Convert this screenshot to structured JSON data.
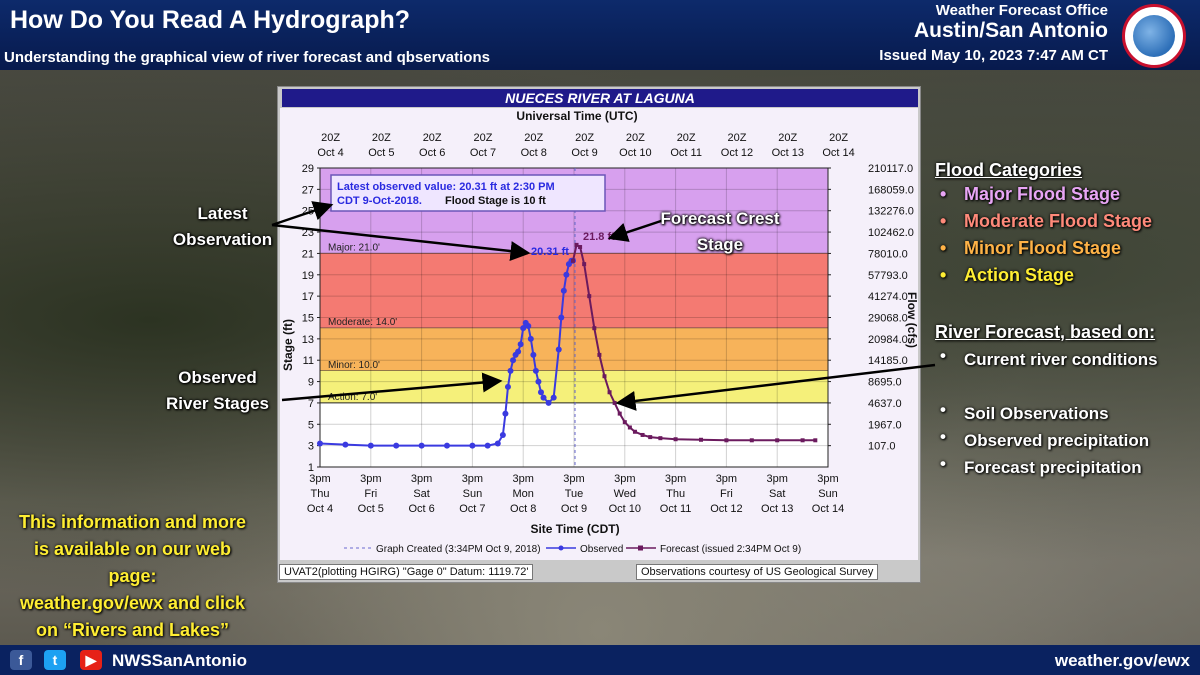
{
  "header": {
    "title": "How Do You Read A Hydrograph?",
    "subtitle": "Understanding the graphical view of river forecast and qbservations",
    "office": "Weather Forecast Office",
    "city": "Austin/San Antonio",
    "issued": "Issued May 10, 2023 7:47 AM CT"
  },
  "footer": {
    "handle": "NWSSanAntonio",
    "website": "weather.gov/ewx",
    "icons": [
      "facebook-icon",
      "twitter-icon",
      "youtube-icon"
    ]
  },
  "annotations": {
    "latest": "Latest Observation",
    "crest": "Forecast Crest Stage",
    "observed": "Observed River Stages"
  },
  "right": {
    "flood_head": "Flood Categories",
    "categories": [
      {
        "label": "Major Flood Stage",
        "color": "#e8a5f5"
      },
      {
        "label": "Moderate Flood Stage",
        "color": "#ff8a7a"
      },
      {
        "label": "Minor Flood Stage",
        "color": "#ffb347"
      },
      {
        "label": "Action Stage",
        "color": "#ffee33"
      }
    ],
    "forecast_head": "River Forecast, based on:",
    "bullets": [
      "Current river conditions",
      "Soil Observations",
      "Observed precipitation",
      "Forecast precipitation"
    ]
  },
  "info": {
    "line1": "This information and more",
    "line2": "is available on our web",
    "line3": "page:",
    "line4": "weather.gov/ewx and click",
    "line5": "on “Rivers and Lakes”"
  },
  "chart_footer": {
    "left": "UVAT2(plotting HGIRG) \"Gage 0\" Datum: 1119.72'",
    "right": "Observations courtesy of US Geological Survey"
  },
  "chart_data": {
    "type": "line",
    "title": "NUECES RIVER AT LAGUNA",
    "top_axis_title": "Universal Time (UTC)",
    "xlabel": "Site Time (CDT)",
    "ylabel": "Stage (ft)",
    "y2label": "Flow (cfs)",
    "ylim": [
      1,
      29
    ],
    "xlim": [
      "Oct 4 3pm",
      "Oct 14 3pm"
    ],
    "x_units": "days since Oct 4 3pm CDT",
    "y_ticks": [
      1,
      3,
      5,
      7,
      9,
      11,
      13,
      15,
      17,
      19,
      21,
      23,
      25,
      27,
      29
    ],
    "y2_ticks": [
      {
        "stage": 3,
        "label": "107.0"
      },
      {
        "stage": 5,
        "label": "1967.0"
      },
      {
        "stage": 7,
        "label": "4637.0"
      },
      {
        "stage": 9,
        "label": "8695.0"
      },
      {
        "stage": 11,
        "label": "14185.0"
      },
      {
        "stage": 13,
        "label": "20984.0"
      },
      {
        "stage": 15,
        "label": "29068.0"
      },
      {
        "stage": 17,
        "label": "41274.0"
      },
      {
        "stage": 19,
        "label": "57793.0"
      },
      {
        "stage": 21,
        "label": "78010.0"
      },
      {
        "stage": 23,
        "label": "102462.0"
      },
      {
        "stage": 25,
        "label": "132276.0"
      },
      {
        "stage": 27,
        "label": "168059.0"
      },
      {
        "stage": 29,
        "label": "210117.0"
      }
    ],
    "bottom_ticks": [
      {
        "l1": "3pm",
        "l2": "Thu",
        "l3": "Oct 4"
      },
      {
        "l1": "3pm",
        "l2": "Fri",
        "l3": "Oct 5"
      },
      {
        "l1": "3pm",
        "l2": "Sat",
        "l3": "Oct 6"
      },
      {
        "l1": "3pm",
        "l2": "Sun",
        "l3": "Oct 7"
      },
      {
        "l1": "3pm",
        "l2": "Mon",
        "l3": "Oct 8"
      },
      {
        "l1": "3pm",
        "l2": "Tue",
        "l3": "Oct 9"
      },
      {
        "l1": "3pm",
        "l2": "Wed",
        "l3": "Oct 10"
      },
      {
        "l1": "3pm",
        "l2": "Thu",
        "l3": "Oct 11"
      },
      {
        "l1": "3pm",
        "l2": "Fri",
        "l3": "Oct 12"
      },
      {
        "l1": "3pm",
        "l2": "Sat",
        "l3": "Oct 13"
      },
      {
        "l1": "3pm",
        "l2": "Sun",
        "l3": "Oct 14"
      }
    ],
    "top_ticks": [
      {
        "l1": "20Z",
        "l2": "Oct 4"
      },
      {
        "l1": "20Z",
        "l2": "Oct 5"
      },
      {
        "l1": "20Z",
        "l2": "Oct 6"
      },
      {
        "l1": "20Z",
        "l2": "Oct 7"
      },
      {
        "l1": "20Z",
        "l2": "Oct 8"
      },
      {
        "l1": "20Z",
        "l2": "Oct 9"
      },
      {
        "l1": "20Z",
        "l2": "Oct 10"
      },
      {
        "l1": "20Z",
        "l2": "Oct 11"
      },
      {
        "l1": "20Z",
        "l2": "Oct 12"
      },
      {
        "l1": "20Z",
        "l2": "Oct 13"
      },
      {
        "l1": "20Z",
        "l2": "Oct 14"
      }
    ],
    "bands": [
      {
        "name": "Major",
        "label": "Major: 21.0'",
        "from": 21,
        "to": 29,
        "color": "#d7a0ee"
      },
      {
        "name": "Moderate",
        "label": "Moderate: 14.0'",
        "from": 14,
        "to": 21,
        "color": "#f47a72"
      },
      {
        "name": "Minor",
        "label": "Minor: 10.0'",
        "from": 10,
        "to": 14,
        "color": "#f7b35a"
      },
      {
        "name": "Action",
        "label": "Action: 7.0'",
        "from": 7,
        "to": 10,
        "color": "#f5f07a"
      }
    ],
    "latest_box": {
      "line1": "Latest observed value: 20.31 ft at 2:30 PM",
      "line2a": "CDT 9-Oct-2018.",
      "line2b": "Flood Stage is 10 ft"
    },
    "point_labels": {
      "observed": "20.31 ft",
      "crest": "21.8 ft"
    },
    "graph_created_x": 5.02,
    "legend": {
      "created": "Graph Created (3:34PM Oct 9, 2018)",
      "observed": "Observed",
      "forecast": "Forecast (issued 2:34PM Oct 9)"
    },
    "series": [
      {
        "name": "Observed",
        "color": "#3a3ae0",
        "x": [
          0,
          0.5,
          1,
          1.5,
          2,
          2.5,
          3,
          3.3,
          3.5,
          3.6,
          3.65,
          3.7,
          3.75,
          3.8,
          3.85,
          3.9,
          3.95,
          4.0,
          4.05,
          4.1,
          4.15,
          4.2,
          4.25,
          4.3,
          4.35,
          4.4,
          4.5,
          4.6,
          4.7,
          4.75,
          4.8,
          4.85,
          4.9,
          4.95,
          4.98
        ],
        "y": [
          3.2,
          3.1,
          3.0,
          3.0,
          3.0,
          3.0,
          3.0,
          3.0,
          3.2,
          4.0,
          6.0,
          8.5,
          10.0,
          11.0,
          11.5,
          11.8,
          12.5,
          14.0,
          14.5,
          14.2,
          13.0,
          11.5,
          10.0,
          9.0,
          8.0,
          7.5,
          7.0,
          7.5,
          12.0,
          15.0,
          17.5,
          19.0,
          20.0,
          20.31,
          20.31
        ]
      },
      {
        "name": "Forecast",
        "color": "#6b1a5e",
        "x": [
          4.98,
          5.05,
          5.12,
          5.2,
          5.3,
          5.4,
          5.5,
          5.6,
          5.7,
          5.8,
          5.9,
          6.0,
          6.1,
          6.2,
          6.35,
          6.5,
          6.7,
          7.0,
          7.5,
          8.0,
          8.5,
          9.0,
          9.5,
          9.75
        ],
        "y": [
          20.31,
          21.8,
          21.6,
          20.0,
          17.0,
          14.0,
          11.5,
          9.5,
          8.0,
          7.0,
          6.0,
          5.2,
          4.7,
          4.3,
          4.0,
          3.8,
          3.7,
          3.6,
          3.55,
          3.5,
          3.5,
          3.5,
          3.5,
          3.5
        ]
      }
    ]
  }
}
